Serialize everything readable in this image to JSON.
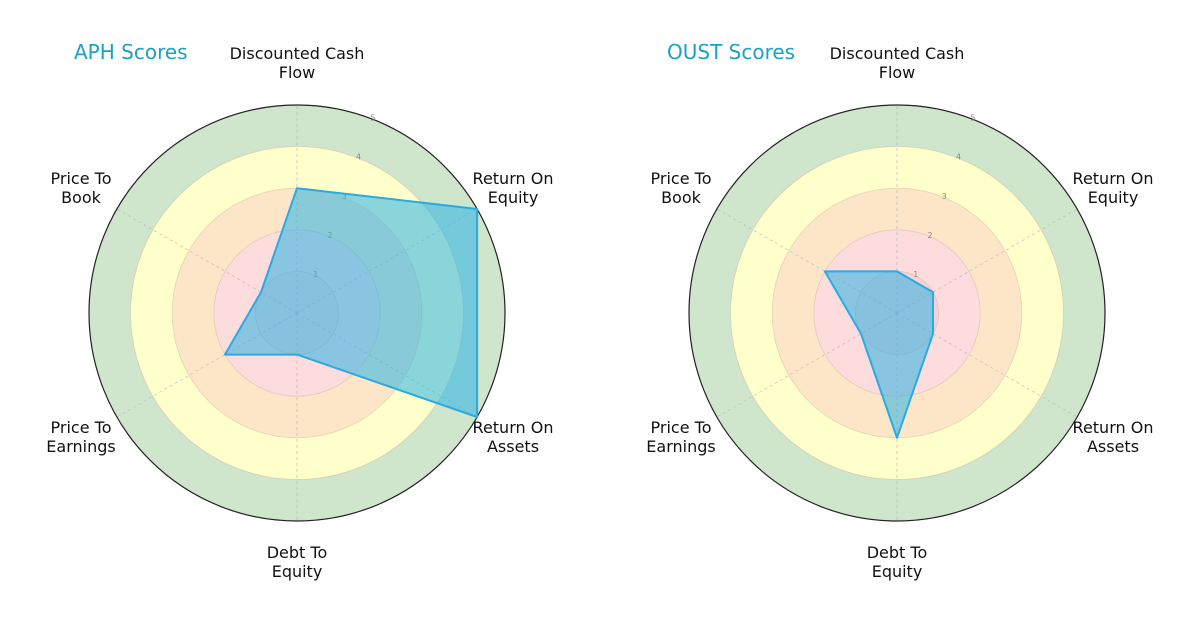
{
  "chart_data": [
    {
      "type": "radar",
      "title": "APH Scores",
      "categories": [
        "Discounted Cash Flow",
        "Return On Equity",
        "Return On Assets",
        "Debt To Equity",
        "Price To Earnings",
        "Price To Book"
      ],
      "values": [
        3,
        5,
        5,
        1,
        2,
        1
      ],
      "rlim": [
        0,
        5
      ],
      "rticks": [
        1,
        2,
        3,
        4,
        5
      ],
      "fill_color": "#29abe2",
      "ring_colors": [
        "#f7d2d2",
        "#fcdcdc",
        "#fde6c8",
        "#ffffcc",
        "#cfe5cc"
      ]
    },
    {
      "type": "radar",
      "title": "OUST Scores",
      "categories": [
        "Discounted Cash Flow",
        "Return On Equity",
        "Return On Assets",
        "Debt To Equity",
        "Price To Earnings",
        "Price To Book"
      ],
      "values": [
        1,
        1,
        1,
        3,
        1,
        2
      ],
      "rlim": [
        0,
        5
      ],
      "rticks": [
        1,
        2,
        3,
        4,
        5
      ],
      "fill_color": "#29abe2",
      "ring_colors": [
        "#f7d2d2",
        "#fcdcdc",
        "#fde6c8",
        "#ffffcc",
        "#cfe5cc"
      ]
    }
  ],
  "panels": [
    {
      "title": "APH Scores",
      "labels": {
        "dcf": "Discounted Cash\nFlow",
        "roe": "Return On\nEquity",
        "roa": "Return On\nAssets",
        "dte": "Debt To\nEquity",
        "pte": "Price To\nEarnings",
        "ptb": "Price To\nBook"
      }
    },
    {
      "title": "OUST Scores",
      "labels": {
        "dcf": "Discounted Cash\nFlow",
        "roe": "Return On\nEquity",
        "roa": "Return On\nAssets",
        "dte": "Debt To\nEquity",
        "pte": "Price To\nEarnings",
        "ptb": "Price To\nBook"
      }
    }
  ]
}
